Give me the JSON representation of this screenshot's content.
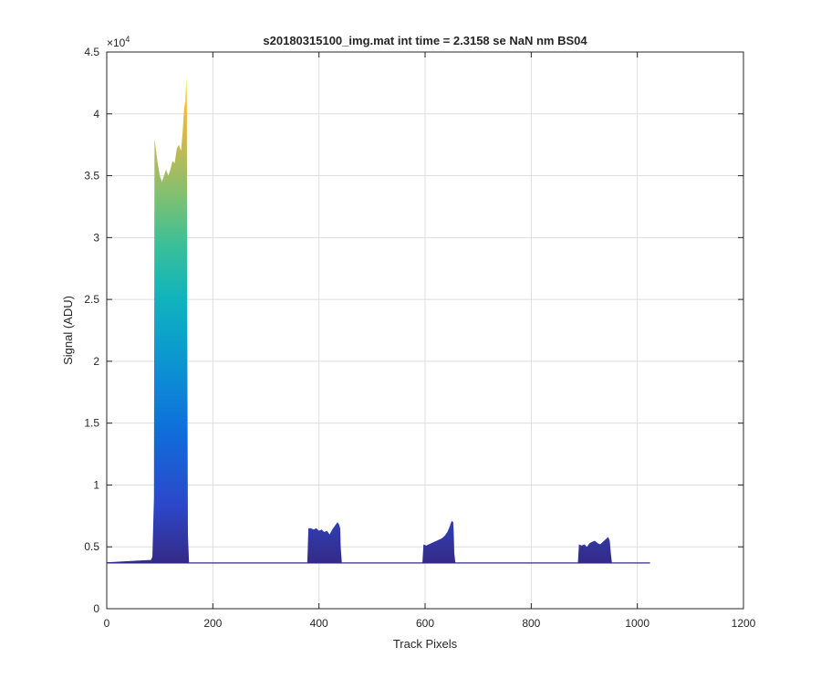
{
  "chart_data": {
    "type": "area",
    "title": "s20180315100_img.mat int time = 2.3158 se  NaN nm BS04",
    "xlabel": "Track Pixels",
    "ylabel": "Signal (ADU)",
    "xlim": [
      0,
      1200
    ],
    "ylim": [
      0,
      45000
    ],
    "y_exponent_label": "×10",
    "y_exponent_power": "4",
    "x_ticks": [
      0,
      200,
      400,
      600,
      800,
      1000,
      1200
    ],
    "x_tick_labels": [
      "0",
      "200",
      "400",
      "600",
      "800",
      "1000",
      "1200"
    ],
    "y_ticks": [
      0,
      5000,
      10000,
      15000,
      20000,
      25000,
      30000,
      35000,
      40000,
      45000
    ],
    "y_tick_labels": [
      "0",
      "0.5",
      "1",
      "1.5",
      "2",
      "2.5",
      "3",
      "3.5",
      "4",
      "4.5"
    ],
    "grid": true,
    "colormap": "parula",
    "baseline": 3700,
    "x_extent": [
      1,
      1024
    ],
    "peaks": [
      {
        "x_start": 83,
        "x_end": 155,
        "profile": [
          [
            83,
            3900
          ],
          [
            86,
            4200
          ],
          [
            89,
            9000
          ],
          [
            90,
            38000
          ],
          [
            93,
            37000
          ],
          [
            96,
            36000
          ],
          [
            100,
            35000
          ],
          [
            104,
            34500
          ],
          [
            108,
            35000
          ],
          [
            112,
            35500
          ],
          [
            116,
            35000
          ],
          [
            120,
            35500
          ],
          [
            124,
            36200
          ],
          [
            128,
            36000
          ],
          [
            132,
            37200
          ],
          [
            136,
            37500
          ],
          [
            140,
            37000
          ],
          [
            143,
            38500
          ],
          [
            146,
            40500
          ],
          [
            148,
            41000
          ],
          [
            150,
            43000
          ],
          [
            151,
            41500
          ],
          [
            152,
            20000
          ],
          [
            153,
            6000
          ],
          [
            155,
            3800
          ]
        ]
      },
      {
        "x_start": 378,
        "x_end": 444,
        "profile": [
          [
            378,
            3750
          ],
          [
            379,
            5000
          ],
          [
            380,
            6500
          ],
          [
            385,
            6500
          ],
          [
            390,
            6400
          ],
          [
            395,
            6500
          ],
          [
            400,
            6300
          ],
          [
            405,
            6400
          ],
          [
            410,
            6200
          ],
          [
            415,
            6300
          ],
          [
            420,
            6000
          ],
          [
            425,
            6400
          ],
          [
            430,
            6700
          ],
          [
            435,
            7000
          ],
          [
            438,
            6800
          ],
          [
            440,
            6500
          ],
          [
            441,
            5000
          ],
          [
            443,
            3750
          ]
        ]
      },
      {
        "x_start": 595,
        "x_end": 658,
        "profile": [
          [
            595,
            3750
          ],
          [
            596,
            4500
          ],
          [
            597,
            5200
          ],
          [
            602,
            5100
          ],
          [
            607,
            5200
          ],
          [
            612,
            5300
          ],
          [
            617,
            5400
          ],
          [
            622,
            5500
          ],
          [
            627,
            5600
          ],
          [
            632,
            5700
          ],
          [
            637,
            5900
          ],
          [
            642,
            6200
          ],
          [
            646,
            6600
          ],
          [
            650,
            7100
          ],
          [
            653,
            7000
          ],
          [
            654,
            6200
          ],
          [
            655,
            4500
          ],
          [
            657,
            3750
          ]
        ]
      },
      {
        "x_start": 888,
        "x_end": 953,
        "profile": [
          [
            888,
            3750
          ],
          [
            889,
            4500
          ],
          [
            890,
            5200
          ],
          [
            895,
            5100
          ],
          [
            900,
            5200
          ],
          [
            905,
            5000
          ],
          [
            910,
            5300
          ],
          [
            915,
            5400
          ],
          [
            920,
            5500
          ],
          [
            925,
            5300
          ],
          [
            930,
            5200
          ],
          [
            935,
            5400
          ],
          [
            940,
            5600
          ],
          [
            945,
            5800
          ],
          [
            948,
            5500
          ],
          [
            950,
            4500
          ],
          [
            952,
            3750
          ]
        ]
      }
    ]
  }
}
